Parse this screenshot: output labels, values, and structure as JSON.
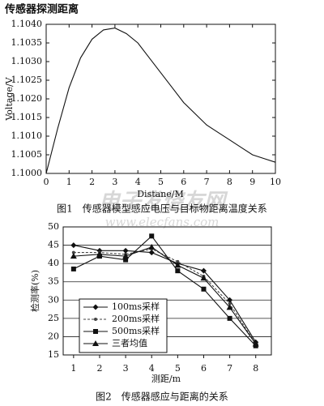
{
  "header": {
    "title": "传感器探测距离"
  },
  "watermark": {
    "logo": "电子发烧友网",
    "url": "www.elecfans.com"
  },
  "chart_data": [
    {
      "type": "line",
      "caption": "图1　传感器模型感应电压与目标物距离温度关系",
      "x_label": "Distane/M",
      "y_label": "Voltage/V",
      "x": [
        0,
        0.5,
        1,
        1.5,
        2,
        2.5,
        3,
        3.5,
        4,
        4.5,
        5,
        5.5,
        6,
        6.5,
        7,
        7.5,
        8,
        8.5,
        9,
        9.5,
        10
      ],
      "values": [
        1.1,
        1.1012,
        1.1023,
        1.1031,
        1.1036,
        1.10385,
        1.1039,
        1.10375,
        1.1035,
        1.1031,
        1.1027,
        1.1023,
        1.1019,
        1.1016,
        1.1013,
        1.1011,
        1.1009,
        1.1007,
        1.1005,
        1.1004,
        1.1003
      ],
      "color": "#111111",
      "xlim": [
        0,
        10
      ],
      "xticks": [
        0,
        1,
        2,
        3,
        4,
        5,
        6,
        7,
        8,
        9,
        10
      ],
      "ylim": [
        1.1,
        1.104
      ],
      "yticks": [
        {
          "value": 1.1,
          "label": "1.1000"
        },
        {
          "value": 1.1005,
          "label": "1.1005"
        },
        {
          "value": 1.101,
          "label": "1.1010"
        },
        {
          "value": 1.1015,
          "label": "1.1015"
        },
        {
          "value": 1.102,
          "label": "1.1020"
        },
        {
          "value": 1.1025,
          "label": "1.1025"
        },
        {
          "value": 1.103,
          "label": "1.1030"
        },
        {
          "value": 1.1035,
          "label": "1.1035"
        },
        {
          "value": 1.104,
          "label": "1.1040"
        }
      ],
      "grid": false
    },
    {
      "type": "line",
      "caption": "图2　传感器感应与距离的关系",
      "x_label": "测距/m",
      "y_label": "检测率(%)",
      "x": [
        1,
        2,
        3,
        4,
        5,
        6,
        7,
        8
      ],
      "series": [
        {
          "name": "100ms采样",
          "color": "#111111",
          "marker": "diamond",
          "dash": false,
          "values": [
            45,
            43.5,
            43.5,
            43,
            40,
            38,
            30,
            18.5
          ]
        },
        {
          "name": "200ms采样",
          "color": "#444444",
          "marker": "dot",
          "dash": true,
          "values": [
            43,
            43,
            42.5,
            44,
            40.5,
            36.5,
            29,
            18
          ]
        },
        {
          "name": "500ms采样",
          "color": "#111111",
          "marker": "square",
          "dash": false,
          "values": [
            38.5,
            42,
            41,
            47.5,
            38,
            33,
            25,
            17.5
          ]
        },
        {
          "name": "三者均值",
          "color": "#111111",
          "marker": "triangle",
          "dash": false,
          "values": [
            42,
            42.5,
            42,
            44.5,
            39.5,
            36,
            28,
            18
          ]
        }
      ],
      "xlim": [
        0.6,
        8.6
      ],
      "xticks": [
        1,
        2,
        3,
        4,
        5,
        6,
        7,
        8
      ],
      "ylim": [
        15,
        50
      ],
      "yticks": [
        15,
        20,
        25,
        30,
        35,
        40,
        45,
        50
      ],
      "grid": true,
      "legend": "lower left"
    }
  ]
}
